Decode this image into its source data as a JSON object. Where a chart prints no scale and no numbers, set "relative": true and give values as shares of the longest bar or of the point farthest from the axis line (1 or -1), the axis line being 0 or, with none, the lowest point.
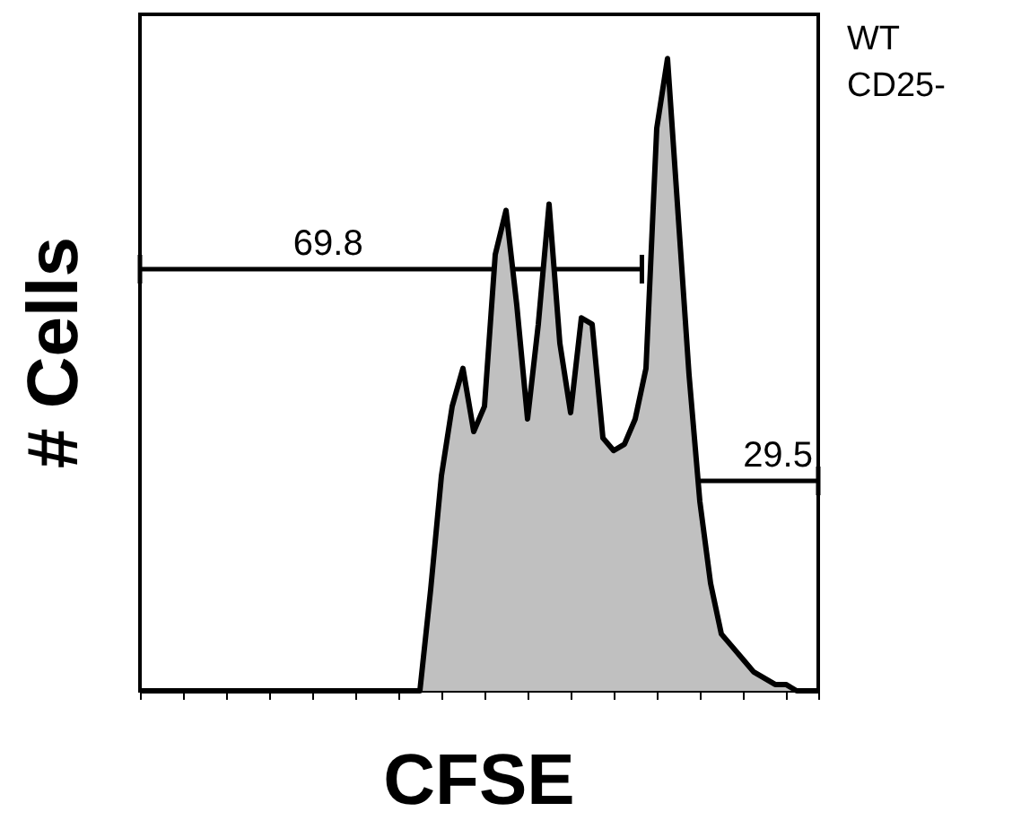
{
  "chart_data": {
    "type": "area",
    "relative": true,
    "xlabel": "CFSE",
    "ylabel": "# Cells",
    "color": "#c0c0c0",
    "categories": [
      null,
      null,
      null,
      null,
      null,
      null,
      null,
      null,
      null,
      null,
      null,
      null,
      null,
      null,
      null,
      null,
      null,
      null,
      null,
      null,
      null,
      null,
      null,
      null,
      null,
      null,
      null,
      null,
      null,
      null,
      null,
      null,
      null,
      null,
      null,
      null,
      null,
      null,
      null,
      null,
      null,
      null,
      null,
      null,
      null,
      null,
      null,
      null,
      null,
      null,
      null,
      null,
      null,
      null,
      null,
      null,
      null,
      null,
      null,
      null,
      null,
      null,
      null,
      null
    ],
    "values": [
      0,
      0,
      0,
      0,
      0,
      0,
      0,
      0,
      0,
      0,
      0,
      0,
      0,
      0,
      0,
      0,
      0,
      0,
      0,
      0,
      0,
      0,
      0,
      0,
      0,
      0,
      0,
      0.16,
      0.34,
      0.45,
      0.51,
      0.41,
      0.45,
      0.69,
      0.76,
      0.61,
      0.43,
      0.58,
      0.77,
      0.55,
      0.44,
      0.59,
      0.58,
      0.4,
      0.38,
      0.39,
      0.43,
      0.51,
      0.89,
      1.0,
      0.75,
      0.5,
      0.3,
      0.17,
      0.09,
      0.07,
      0.05,
      0.03,
      0.02,
      0.01,
      0.01,
      0,
      0,
      0
    ],
    "annotations": [
      "69.8",
      "29.5",
      "WT",
      "CD25-"
    ]
  }
}
